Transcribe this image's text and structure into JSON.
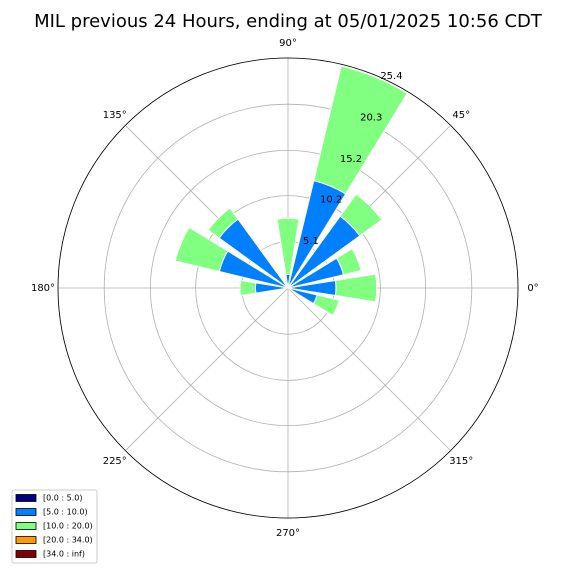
{
  "chart_data": {
    "type": "windrose",
    "title": "MIL previous 24 Hours, ending at 05/01/2025 10:56 CDT",
    "x": [
      0,
      22.5,
      45,
      67.5,
      90,
      112.5,
      135,
      157.5,
      180,
      202.5,
      225,
      247.5,
      270,
      292.5,
      315,
      337.5
    ],
    "series": [
      {
        "name": "[0.0 : 5.0)",
        "color": "#000080",
        "values": [
          0,
          0,
          0,
          0,
          0,
          0,
          0,
          0,
          0,
          0,
          0,
          0,
          0,
          0,
          0,
          0
        ]
      },
      {
        "name": "[5.0 : 10.0)",
        "color": "#0080ff",
        "values": [
          5.3,
          6.3,
          9.8,
          12.2,
          1.5,
          0,
          9.4,
          7.8,
          3.6,
          0,
          0,
          0,
          0,
          0,
          0,
          3.3
        ]
      },
      {
        "name": "[10.0 : 20.0)",
        "color": "#80ff80",
        "values": [
          4.5,
          2.0,
          3.0,
          13.0,
          6.2,
          0,
          1.5,
          5.0,
          1.7,
          0,
          0,
          0,
          0,
          0,
          0,
          2.5
        ]
      },
      {
        "name": "[20.0 : 34.0)",
        "color": "#ff9900",
        "values": [
          0,
          0,
          0,
          0,
          0,
          0,
          0,
          0,
          0,
          0,
          0,
          0,
          0,
          0,
          0,
          0
        ]
      },
      {
        "name": "[34.0 : inf)",
        "color": "#800000",
        "values": [
          0,
          0,
          0,
          0,
          0,
          0,
          0,
          0,
          0,
          0,
          0,
          0,
          0,
          0,
          0,
          0
        ]
      }
    ],
    "xlim": [
      0,
      360
    ],
    "xticks": [
      {
        "value": 0,
        "label": "0°"
      },
      {
        "value": 45,
        "label": "45°"
      },
      {
        "value": 90,
        "label": "90°"
      },
      {
        "value": 135,
        "label": "135°"
      },
      {
        "value": 180,
        "label": "180°"
      },
      {
        "value": 225,
        "label": "225°"
      },
      {
        "value": 270,
        "label": "270°"
      },
      {
        "value": 315,
        "label": "315°"
      }
    ],
    "ylim": [
      0,
      25.4
    ],
    "yticks": [
      5.1,
      10.2,
      15.2,
      20.3,
      25.4
    ],
    "grid": true,
    "legend": "lower left"
  }
}
